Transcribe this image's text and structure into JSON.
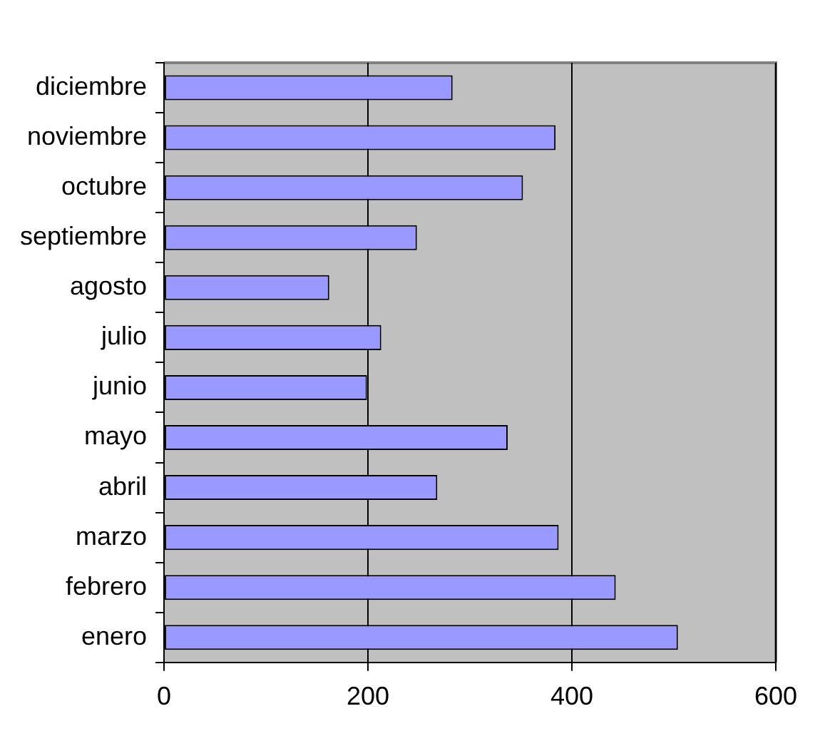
{
  "chart_data": {
    "type": "bar",
    "orientation": "horizontal",
    "categories": [
      "diciembre",
      "noviembre",
      "octubre",
      "septiembre",
      "agosto",
      "julio",
      "junio",
      "mayo",
      "abril",
      "marzo",
      "febrero",
      "enero"
    ],
    "values": [
      283,
      384,
      352,
      248,
      162,
      213,
      199,
      337,
      268,
      387,
      443,
      504
    ],
    "color": "#9999ff",
    "xlim": [
      0,
      600
    ],
    "xticks": [
      0,
      200,
      400,
      600
    ],
    "grid": "x",
    "legend": false
  }
}
